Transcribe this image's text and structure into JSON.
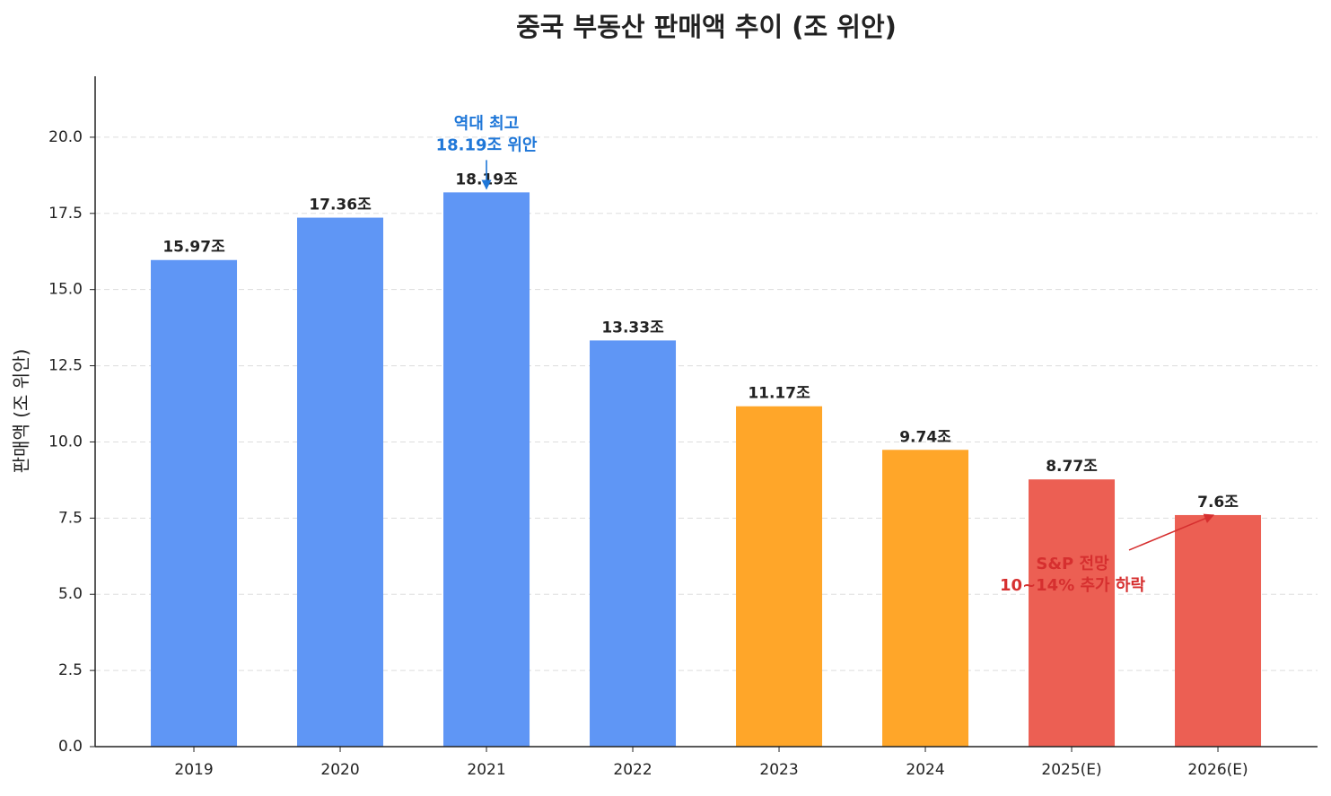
{
  "chart_data": {
    "type": "bar",
    "title": "중국 부동산 판매액 추이 (조 위안)",
    "y_label": "판매액 (조 위안)",
    "categories": [
      "2019",
      "2020",
      "2021",
      "2022",
      "2023",
      "2024",
      "2025(E)",
      "2026(E)"
    ],
    "values": [
      15.97,
      17.36,
      18.19,
      13.33,
      11.17,
      9.74,
      8.77,
      7.6
    ],
    "value_labels": [
      "15.97조",
      "17.36조",
      "18.19조",
      "13.33조",
      "11.17조",
      "9.74조",
      "8.77조",
      "7.6조"
    ],
    "colors": [
      "#5f96f5",
      "#5f96f5",
      "#5f96f5",
      "#5f96f5",
      "#ffa629",
      "#ffa629",
      "#ec5f53",
      "#ec5f53"
    ],
    "ylim": [
      0,
      22
    ],
    "yticks": [
      {
        "value": 0,
        "label": "0.0"
      },
      2.5,
      {
        "value": 5,
        "label": "5.0"
      },
      7.5,
      {
        "value": 10,
        "label": "10.0"
      },
      12.5,
      {
        "value": 15,
        "label": "15.0"
      },
      17.5,
      {
        "value": 20,
        "label": "20.0"
      }
    ],
    "grid": true,
    "annotations": [
      {
        "lines": [
          "역대 최고",
          "18.19조 위안"
        ],
        "x": 2,
        "y": 18.19,
        "color": "#1f77d8"
      },
      {
        "lines": [
          "S&P 전망",
          "10~14% 추가 하락"
        ],
        "x": 7,
        "y": 7.6,
        "color": "#d62f2f"
      }
    ]
  }
}
